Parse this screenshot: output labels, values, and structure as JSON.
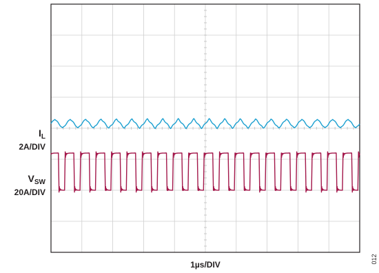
{
  "chart_data": {
    "type": "line",
    "xlabel": "1µs/DIV",
    "figure_id": "012",
    "grid": true,
    "divisions": {
      "x": 10,
      "y": 8
    },
    "x_range_div": [
      0,
      10
    ],
    "y_range_div": [
      0,
      8
    ],
    "channels": [
      {
        "id": "IL",
        "name_main": "I",
        "name_sub": "L",
        "scale": "2A/DIV",
        "color": "#1a9fd0",
        "waveform": "triangle ripple",
        "periods_on_screen": 20,
        "center_div": 4.15,
        "peak_to_peak_div": 0.3
      },
      {
        "id": "VSW",
        "name_main": "V",
        "name_sub": "SW",
        "scale": "20A/DIV",
        "color": "#a3174a",
        "waveform": "square",
        "periods_on_screen": 20,
        "duty_cycle": 0.6,
        "high_div": 3.2,
        "low_div": 2.0,
        "ringing": true
      }
    ]
  }
}
